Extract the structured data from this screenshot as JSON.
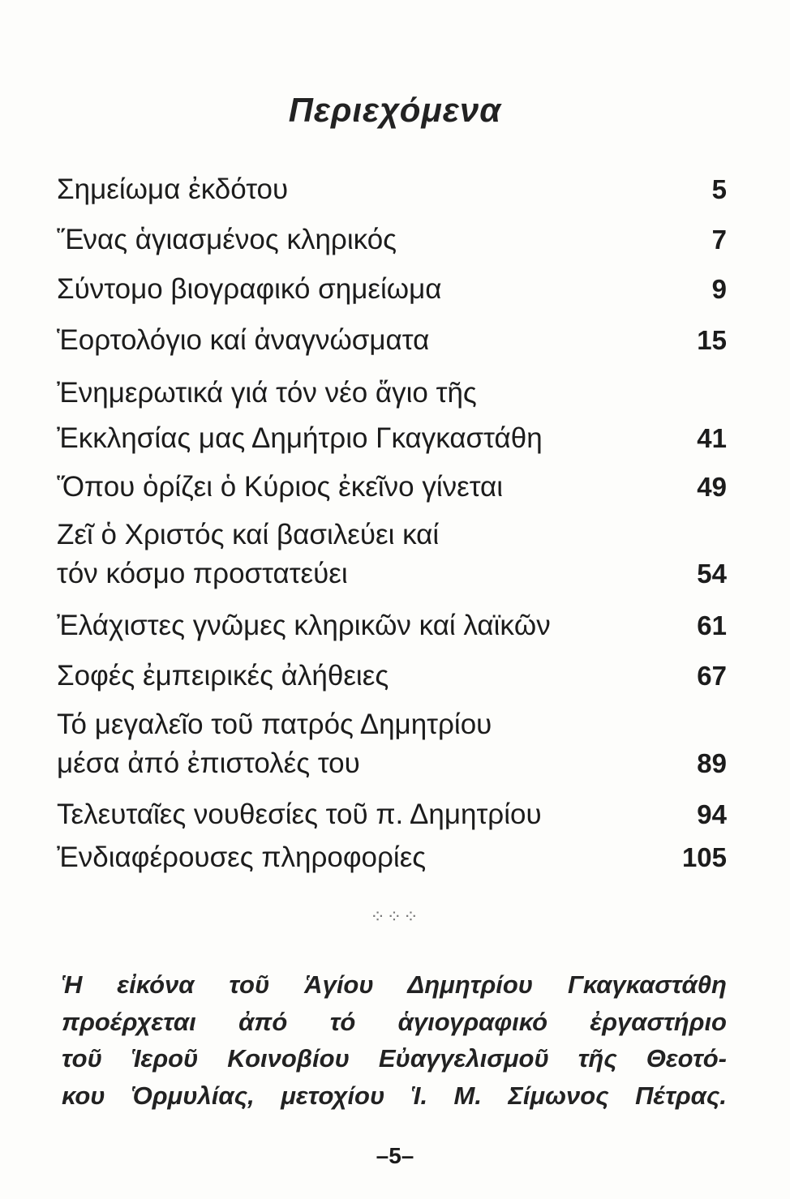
{
  "title": "Περιεχόμενα",
  "entries": [
    {
      "lines": [
        "Σημείωμα ἐκδότου"
      ],
      "page": "5"
    },
    {
      "lines": [
        "Ἕνας ἁγιασμένος κληρικός"
      ],
      "page": "7"
    },
    {
      "lines": [
        "Σύντομο βιογραφικό σημείωμα"
      ],
      "page": "9"
    },
    {
      "lines": [
        "Ἑορτολόγιο καί ἀναγνώσματα"
      ],
      "page": "15"
    },
    {
      "lines": [
        "Ἐνημερωτικά γιά τόν νέο ἅγιο τῆς",
        "Ἐκκλησίας μας Δημήτριο Γκαγκαστάθη"
      ],
      "page": "41"
    },
    {
      "lines": [
        "Ὅπου ὁρίζει ὁ Κύριος ἐκεῖνο γίνεται"
      ],
      "page": "49"
    },
    {
      "lines": [
        "Ζεῖ ὁ Χριστός καί βασιλεύει καί",
        "τόν κόσμο προστατεύει"
      ],
      "page": "54"
    },
    {
      "lines": [
        "Ἐλάχιστες γνῶμες κληρικῶν καί λαϊκῶν"
      ],
      "page": "61"
    },
    {
      "lines": [
        "Σοφές ἐμπειρικές ἀλήθειες"
      ],
      "page": "67"
    },
    {
      "lines": [
        "Τό μεγαλεῖο  τοῦ πατρός Δημητρίου",
        "μέσα ἀπό ἐπιστολές του"
      ],
      "page": "89"
    },
    {
      "lines": [
        "Τελευταῖες νουθεσίες τοῦ π. Δημητρίου"
      ],
      "page": "94"
    },
    {
      "lines": [
        "Ἐνδιαφέρουσες πληροφορίες"
      ],
      "page": "105"
    }
  ],
  "ornament": "⁘⁘⁘",
  "note_lines": [
    "Ἡ εἰκόνα τοῦ Ἁγίου Δημητρίου Γκαγκαστάθη",
    "προέρχεται ἀπό τό ἁγιογραφικό ἐργαστήριο",
    "τοῦ Ἱεροῦ Κοινοβίου Εὐαγγελισμοῦ τῆς Θεοτό-",
    "κου Ὁρμυλίας, μετοχίου Ἱ. Μ. Σίμωνος Πέτρας."
  ],
  "page_number": "–5–"
}
